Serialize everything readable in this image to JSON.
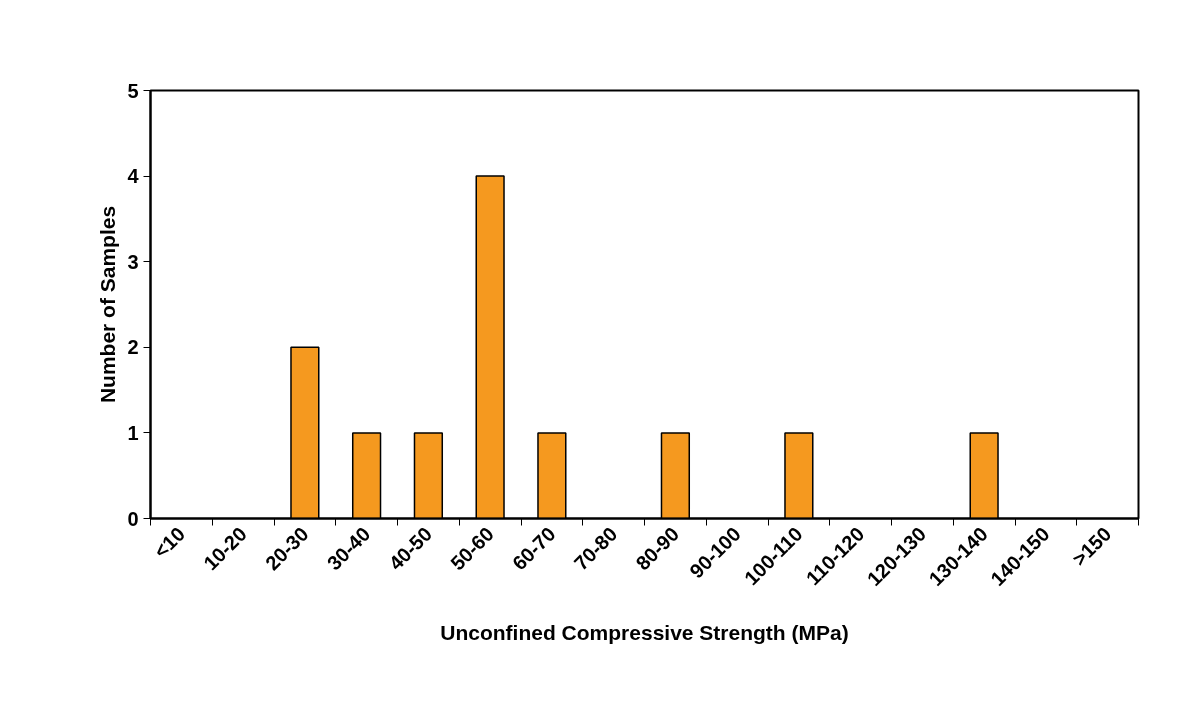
{
  "chart_data": {
    "type": "bar",
    "categories": [
      "<10",
      "10-20",
      "20-30",
      "30-40",
      "40-50",
      "50-60",
      "60-70",
      "70-80",
      "80-90",
      "90-100",
      "100-110",
      "110-120",
      "120-130",
      "130-140",
      "140-150",
      ">150"
    ],
    "values": [
      0,
      0,
      2,
      1,
      1,
      4,
      1,
      0,
      1,
      0,
      1,
      0,
      0,
      1,
      0,
      0
    ],
    "color": "#f5991f",
    "xlabel": "Unconfined Compressive Strength (MPa)",
    "ylabel": "Number of Samples",
    "ylim": [
      0,
      5
    ],
    "yticks": [
      0,
      1,
      2,
      3,
      4,
      5
    ]
  }
}
